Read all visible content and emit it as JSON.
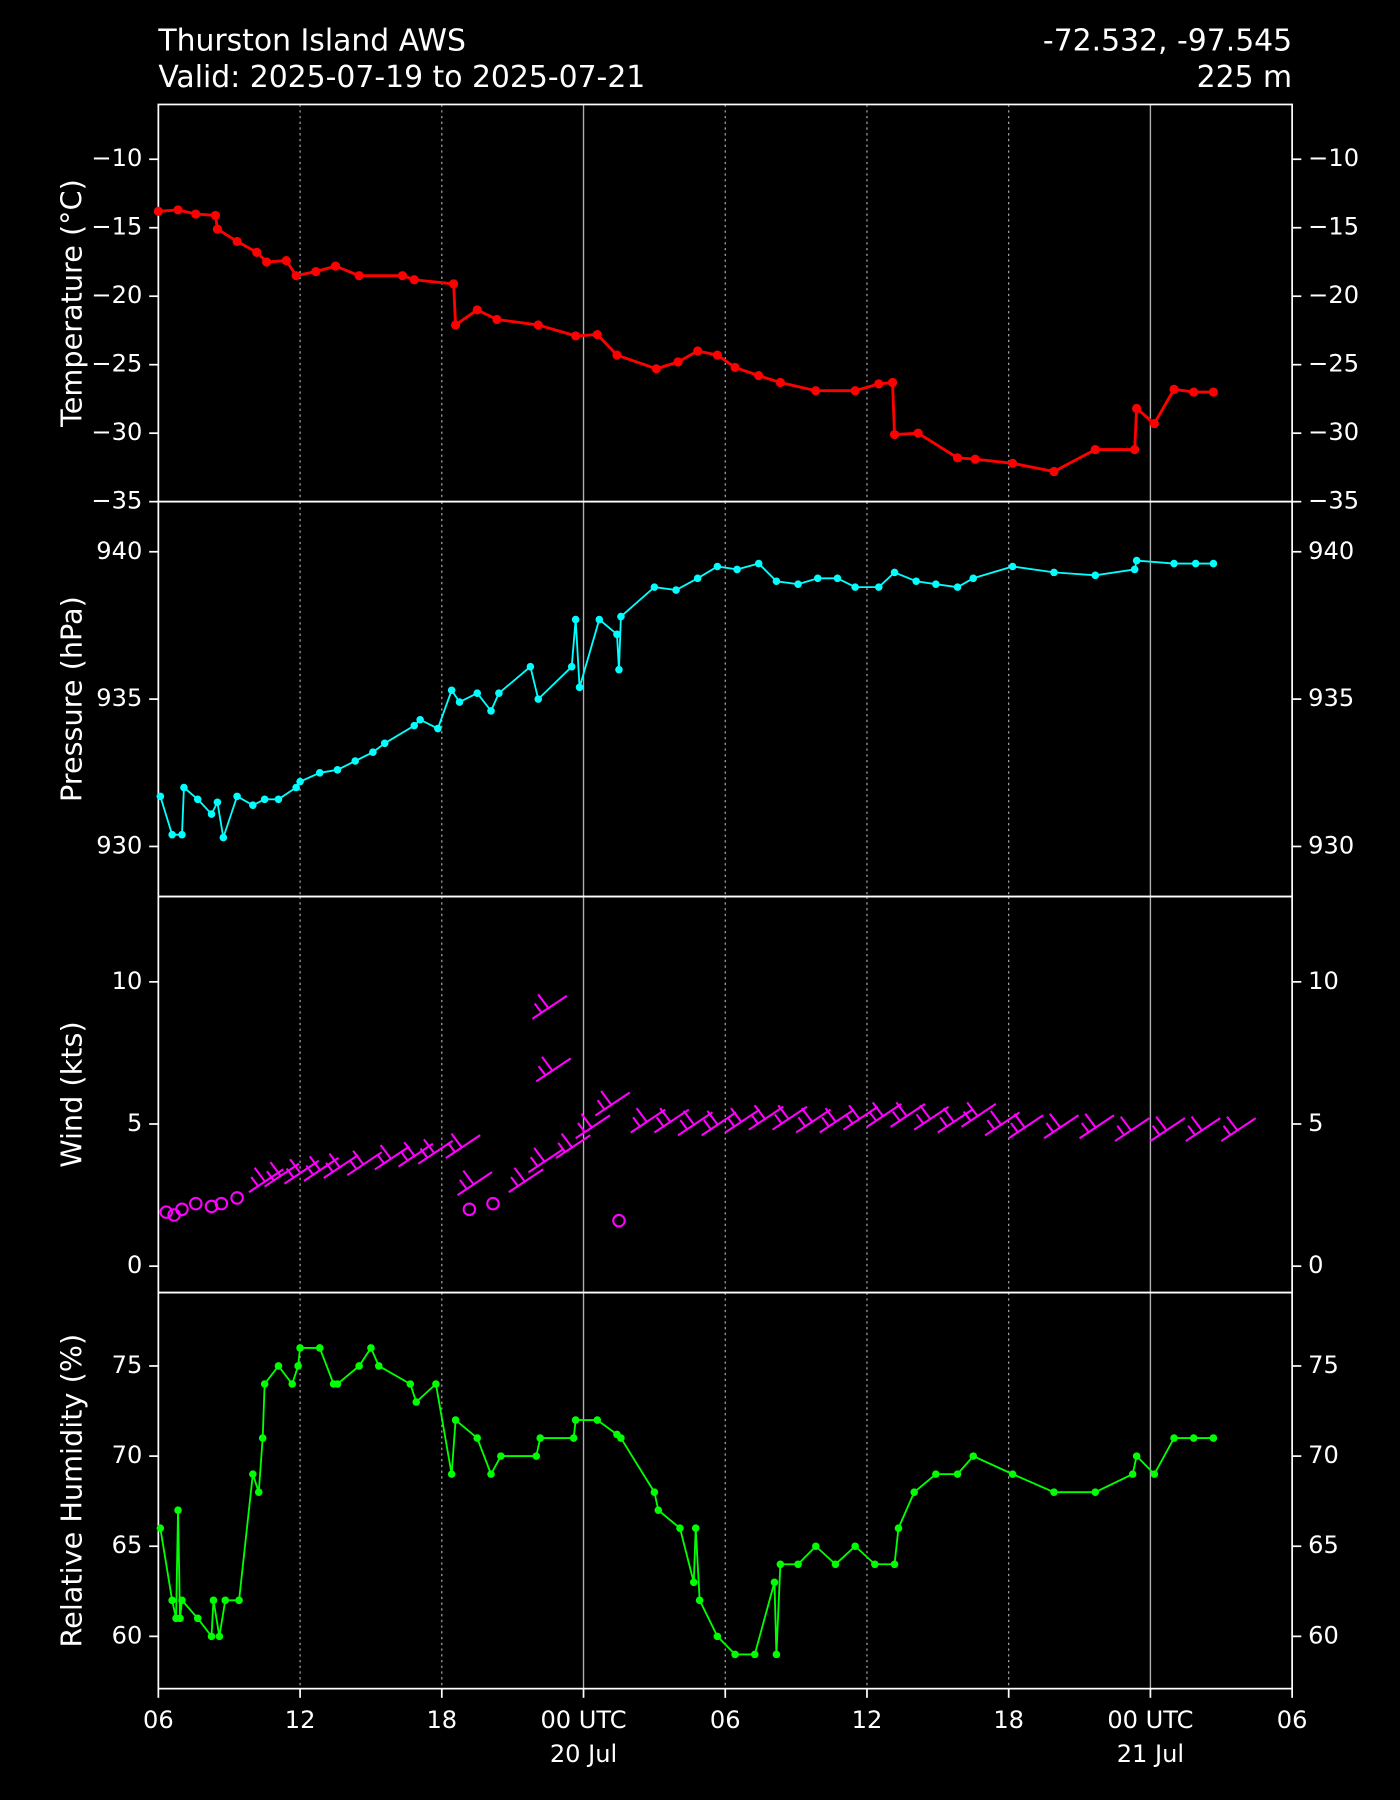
{
  "chart_data": [
    {
      "type": "line",
      "title": "Thurston Island AWS",
      "subtitle": "Valid: 2025-07-19 to 2025-07-21",
      "coordinates": "-72.532, -97.545",
      "elevation": "225 m",
      "ylabel": "Temperature (°C)",
      "color": "#ff0000",
      "ylim": [
        -35,
        -6
      ],
      "yticks": [
        {
          "value": -35,
          "label": "−35"
        },
        {
          "value": -30,
          "label": "−30"
        },
        {
          "value": -25,
          "label": "−25"
        },
        {
          "value": -20,
          "label": "−20"
        },
        {
          "value": -15,
          "label": "−15"
        },
        {
          "value": -10,
          "label": "−10"
        }
      ],
      "x": [
        "2025-07-19 06:00",
        "2025-07-19 06:50",
        "2025-07-19 07:35",
        "2025-07-19 08:25",
        "2025-07-19 08:30",
        "2025-07-19 09:20",
        "2025-07-19 10:10",
        "2025-07-19 10:35",
        "2025-07-19 11:25",
        "2025-07-19 11:50",
        "2025-07-19 12:40",
        "2025-07-19 13:30",
        "2025-07-19 14:30",
        "2025-07-19 16:20",
        "2025-07-19 16:50",
        "2025-07-19 18:30",
        "2025-07-19 18:35",
        "2025-07-19 19:30",
        "2025-07-19 20:20",
        "2025-07-19 22:05",
        "2025-07-19 23:40",
        "2025-07-20 00:35",
        "2025-07-20 01:25",
        "2025-07-20 03:05",
        "2025-07-20 04:00",
        "2025-07-20 04:50",
        "2025-07-20 05:40",
        "2025-07-20 06:25",
        "2025-07-20 07:25",
        "2025-07-20 08:20",
        "2025-07-20 09:50",
        "2025-07-20 11:30",
        "2025-07-20 12:30",
        "2025-07-20 13:05",
        "2025-07-20 13:10",
        "2025-07-20 14:10",
        "2025-07-20 15:50",
        "2025-07-20 16:35",
        "2025-07-20 18:10",
        "2025-07-20 19:55",
        "2025-07-20 21:40",
        "2025-07-20 23:20",
        "2025-07-20 23:25",
        "2025-07-21 00:10",
        "2025-07-21 01:00",
        "2025-07-21 01:50",
        "2025-07-21 02:40"
      ],
      "values": [
        -13.8,
        -13.7,
        -14.0,
        -14.1,
        -15.1,
        -16.0,
        -16.8,
        -17.5,
        -17.4,
        -18.5,
        -18.2,
        -17.8,
        -18.5,
        -18.5,
        -18.8,
        -19.1,
        -22.1,
        -21.0,
        -21.7,
        -22.1,
        -22.9,
        -22.8,
        -24.3,
        -25.3,
        -24.8,
        -24.0,
        -24.3,
        -25.2,
        -25.8,
        -26.3,
        -26.9,
        -26.9,
        -26.4,
        -26.3,
        -30.1,
        -30.0,
        -31.8,
        -31.9,
        -32.2,
        -32.8,
        -31.2,
        -31.2,
        -28.2,
        -29.3,
        -26.8,
        -27.0,
        -27.0
      ]
    },
    {
      "type": "line",
      "ylabel": "Pressure (hPa)",
      "color": "#00ffff",
      "ylim": [
        928.3,
        941.7
      ],
      "yticks": [
        930,
        935,
        940
      ],
      "x": [
        "2025-07-19 06:05",
        "2025-07-19 06:35",
        "2025-07-19 07:00",
        "2025-07-19 07:05",
        "2025-07-19 07:40",
        "2025-07-19 08:15",
        "2025-07-19 08:30",
        "2025-07-19 08:45",
        "2025-07-19 09:20",
        "2025-07-19 10:00",
        "2025-07-19 10:30",
        "2025-07-19 11:05",
        "2025-07-19 11:50",
        "2025-07-19 12:00",
        "2025-07-19 12:50",
        "2025-07-19 13:35",
        "2025-07-19 14:20",
        "2025-07-19 15:05",
        "2025-07-19 15:35",
        "2025-07-19 16:50",
        "2025-07-19 17:05",
        "2025-07-19 17:50",
        "2025-07-19 18:25",
        "2025-07-19 18:45",
        "2025-07-19 19:30",
        "2025-07-19 20:05",
        "2025-07-19 20:25",
        "2025-07-19 21:45",
        "2025-07-19 22:05",
        "2025-07-19 23:30",
        "2025-07-19 23:40",
        "2025-07-19 23:50",
        "2025-07-20 00:40",
        "2025-07-20 01:25",
        "2025-07-20 01:30",
        "2025-07-20 01:35",
        "2025-07-20 03:00",
        "2025-07-20 03:55",
        "2025-07-20 04:50",
        "2025-07-20 05:40",
        "2025-07-20 06:30",
        "2025-07-20 07:25",
        "2025-07-20 08:10",
        "2025-07-20 09:05",
        "2025-07-20 09:55",
        "2025-07-20 10:45",
        "2025-07-20 11:30",
        "2025-07-20 12:30",
        "2025-07-20 13:10",
        "2025-07-20 14:05",
        "2025-07-20 14:55",
        "2025-07-20 15:50",
        "2025-07-20 16:30",
        "2025-07-20 18:10",
        "2025-07-20 19:55",
        "2025-07-20 21:40",
        "2025-07-20 23:20",
        "2025-07-20 23:25",
        "2025-07-21 01:00",
        "2025-07-21 01:55",
        "2025-07-21 02:40"
      ],
      "values": [
        931.7,
        930.4,
        930.4,
        932.0,
        931.6,
        931.1,
        931.5,
        930.3,
        931.7,
        931.4,
        931.6,
        931.6,
        932.0,
        932.2,
        932.5,
        932.6,
        932.9,
        933.2,
        933.5,
        934.1,
        934.3,
        934.0,
        935.3,
        934.9,
        935.2,
        934.6,
        935.2,
        936.1,
        935.0,
        936.1,
        937.7,
        935.4,
        937.7,
        937.2,
        936.0,
        937.8,
        938.8,
        938.7,
        939.1,
        939.5,
        939.4,
        939.6,
        939.0,
        938.9,
        939.1,
        939.1,
        938.8,
        938.8,
        939.3,
        939.0,
        938.9,
        938.8,
        939.1,
        939.5,
        939.3,
        939.2,
        939.4,
        939.7,
        939.6,
        939.6,
        939.6
      ]
    },
    {
      "type": "barbs",
      "ylabel": "Wind (kts)",
      "color": "#ff00ff",
      "ylim": [
        -0.93,
        13
      ],
      "yticks": [
        0,
        5,
        10
      ],
      "x": [
        "2025-07-19 06:20",
        "2025-07-19 06:40",
        "2025-07-19 07:00",
        "2025-07-19 07:35",
        "2025-07-19 08:15",
        "2025-07-19 08:40",
        "2025-07-19 09:20",
        "2025-07-19 09:50",
        "2025-07-19 10:30",
        "2025-07-19 11:20",
        "2025-07-19 12:10",
        "2025-07-19 13:00",
        "2025-07-19 14:00",
        "2025-07-19 15:10",
        "2025-07-19 16:10",
        "2025-07-19 17:00",
        "2025-07-19 18:10",
        "2025-07-19 18:40",
        "2025-07-19 19:10",
        "2025-07-19 20:10",
        "2025-07-19 20:50",
        "2025-07-19 21:40",
        "2025-07-19 21:50",
        "2025-07-19 22:00",
        "2025-07-19 22:50",
        "2025-07-19 23:40",
        "2025-07-20 00:30",
        "2025-07-20 01:30",
        "2025-07-20 02:00",
        "2025-07-20 03:00",
        "2025-07-20 04:00",
        "2025-07-20 05:00",
        "2025-07-20 06:00",
        "2025-07-20 07:00",
        "2025-07-20 08:00",
        "2025-07-20 09:00",
        "2025-07-20 10:00",
        "2025-07-20 11:00",
        "2025-07-20 12:00",
        "2025-07-20 13:00",
        "2025-07-20 14:00",
        "2025-07-20 15:00",
        "2025-07-20 16:00",
        "2025-07-20 17:00",
        "2025-07-20 18:00",
        "2025-07-20 19:30",
        "2025-07-20 21:00",
        "2025-07-20 22:30",
        "2025-07-21 00:00",
        "2025-07-21 01:30",
        "2025-07-21 03:00"
      ],
      "values": [
        1.9,
        1.8,
        2.0,
        2.2,
        2.1,
        2.2,
        2.4,
        2.6,
        2.8,
        2.9,
        3.0,
        3.1,
        3.2,
        3.4,
        3.5,
        3.6,
        3.8,
        2.5,
        2.0,
        2.2,
        2.6,
        3.3,
        8.7,
        6.5,
        3.8,
        4.5,
        5.3,
        1.6,
        4.7,
        4.7,
        4.6,
        4.6,
        4.7,
        4.8,
        4.8,
        4.7,
        4.7,
        4.8,
        4.9,
        4.9,
        4.8,
        4.7,
        4.9,
        4.6,
        4.5,
        4.5,
        4.5,
        4.4,
        4.4,
        4.4,
        4.4
      ]
    },
    {
      "type": "line",
      "ylabel": "Relative Humidity (%)",
      "color": "#00ff00",
      "ylim": [
        57.1,
        79.07
      ],
      "yticks": [
        60,
        65,
        70,
        75
      ],
      "xlim": [
        "2025-07-19 06:00",
        "2025-07-21 06:00"
      ],
      "xticks": [
        {
          "value": "2025-07-19 06:00",
          "label": "06"
        },
        {
          "value": "2025-07-19 12:00",
          "label": "12"
        },
        {
          "value": "2025-07-19 18:00",
          "label": "18"
        },
        {
          "value": "2025-07-20 00:00",
          "label": "00 UTC\n20 Jul"
        },
        {
          "value": "2025-07-20 06:00",
          "label": "06"
        },
        {
          "value": "2025-07-20 12:00",
          "label": "12"
        },
        {
          "value": "2025-07-20 18:00",
          "label": "18"
        },
        {
          "value": "2025-07-21 00:00",
          "label": "00 UTC\n21 Jul"
        },
        {
          "value": "2025-07-21 06:00",
          "label": "06"
        }
      ],
      "x": [
        "2025-07-19 06:05",
        "2025-07-19 06:35",
        "2025-07-19 06:45",
        "2025-07-19 06:50",
        "2025-07-19 06:55",
        "2025-07-19 07:00",
        "2025-07-19 07:40",
        "2025-07-19 08:15",
        "2025-07-19 08:20",
        "2025-07-19 08:35",
        "2025-07-19 08:50",
        "2025-07-19 09:25",
        "2025-07-19 10:00",
        "2025-07-19 10:15",
        "2025-07-19 10:25",
        "2025-07-19 10:30",
        "2025-07-19 11:05",
        "2025-07-19 11:40",
        "2025-07-19 11:55",
        "2025-07-19 12:00",
        "2025-07-19 12:50",
        "2025-07-19 13:25",
        "2025-07-19 13:35",
        "2025-07-19 14:30",
        "2025-07-19 15:00",
        "2025-07-19 15:20",
        "2025-07-19 16:40",
        "2025-07-19 16:55",
        "2025-07-19 17:45",
        "2025-07-19 18:25",
        "2025-07-19 18:35",
        "2025-07-19 19:30",
        "2025-07-19 20:05",
        "2025-07-19 20:30",
        "2025-07-19 22:00",
        "2025-07-19 22:10",
        "2025-07-19 23:35",
        "2025-07-19 23:40",
        "2025-07-20 00:35",
        "2025-07-20 01:25",
        "2025-07-20 01:35",
        "2025-07-20 03:00",
        "2025-07-20 03:10",
        "2025-07-20 04:05",
        "2025-07-20 04:40",
        "2025-07-20 04:45",
        "2025-07-20 04:55",
        "2025-07-20 05:40",
        "2025-07-20 06:25",
        "2025-07-20 07:15",
        "2025-07-20 08:05",
        "2025-07-20 08:10",
        "2025-07-20 08:20",
        "2025-07-20 09:05",
        "2025-07-20 09:50",
        "2025-07-20 10:40",
        "2025-07-20 11:30",
        "2025-07-20 12:20",
        "2025-07-20 13:10",
        "2025-07-20 13:20",
        "2025-07-20 14:00",
        "2025-07-20 14:55",
        "2025-07-20 15:50",
        "2025-07-20 16:30",
        "2025-07-20 18:10",
        "2025-07-20 19:55",
        "2025-07-20 21:40",
        "2025-07-20 23:15",
        "2025-07-20 23:25",
        "2025-07-21 00:10",
        "2025-07-21 01:00",
        "2025-07-21 01:50",
        "2025-07-21 02:40"
      ],
      "values": [
        66,
        62,
        61,
        67,
        61,
        62,
        61,
        60,
        62,
        60,
        62,
        62,
        69,
        68,
        71,
        74,
        75,
        74,
        75,
        76,
        76,
        74,
        74,
        75,
        76,
        75,
        74,
        73,
        74,
        69,
        72,
        71,
        69,
        70,
        70,
        71,
        71,
        72,
        72,
        71.2,
        71,
        68,
        67,
        66,
        63,
        66,
        62,
        60,
        59,
        59,
        63,
        59,
        64,
        64,
        65,
        64,
        65,
        64,
        64,
        66,
        68,
        69,
        69,
        70,
        69,
        68,
        68,
        69,
        70,
        69,
        71,
        71,
        71
      ]
    }
  ]
}
